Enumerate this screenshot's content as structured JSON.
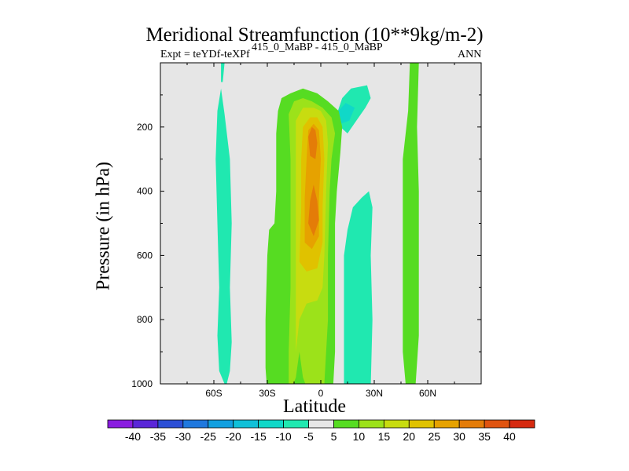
{
  "chart_data": {
    "type": "heatmap",
    "title": "Meridional Streamfunction (10**9kg/m-2)",
    "subtitle_left": "Expt = teYDf-teXPf",
    "subtitle_center": "415_0_MaBP - 415_0_MaBP",
    "subtitle_right": "ANN",
    "xlabel": "Latitude",
    "ylabel": "Pressure (in hPa)",
    "xlim": [
      -90,
      90
    ],
    "ylim": [
      1000,
      0
    ],
    "x_ticks": [
      {
        "value": -60,
        "label": "60S"
      },
      {
        "value": -30,
        "label": "30S"
      },
      {
        "value": 0,
        "label": "0"
      },
      {
        "value": 30,
        "label": "30N"
      },
      {
        "value": 60,
        "label": "60N"
      }
    ],
    "y_ticks": [
      {
        "value": 200,
        "label": "200"
      },
      {
        "value": 400,
        "label": "400"
      },
      {
        "value": 600,
        "label": "600"
      },
      {
        "value": 800,
        "label": "800"
      },
      {
        "value": 1000,
        "label": "1000"
      }
    ],
    "plot_background": "#e6e6e6",
    "contour_levels": [
      -40,
      -35,
      -30,
      -25,
      -20,
      -15,
      -10,
      -5,
      5,
      10,
      15,
      20,
      25,
      30,
      35,
      40
    ],
    "colorbar_labels": [
      "-40",
      "-35",
      "-30",
      "-25",
      "-20",
      "-15",
      "-10",
      "-5",
      "5",
      "10",
      "15",
      "20",
      "25",
      "30",
      "35",
      "40"
    ],
    "colorbar_colors": [
      "#8a1ce0",
      "#5a26d8",
      "#2c4fd6",
      "#1f78de",
      "#12a0e0",
      "#10c0d8",
      "#10d8c8",
      "#20e8b0",
      "#e6e6e6",
      "#56dc22",
      "#9ce21a",
      "#c8dc10",
      "#e0c200",
      "#e6a200",
      "#e47c08",
      "#e05410",
      "#d62a10"
    ],
    "regions": [
      {
        "name": "southern-high-lat-cell",
        "level": -5,
        "color": "#20e8b0",
        "points": [
          [
            -54,
            1000
          ],
          [
            -57,
            960
          ],
          [
            -58,
            850
          ],
          [
            -57,
            700
          ],
          [
            -58,
            500
          ],
          [
            -59,
            300
          ],
          [
            -58,
            150
          ],
          [
            -56,
            80
          ],
          [
            -54,
            160
          ],
          [
            -51,
            300
          ],
          [
            -50,
            500
          ],
          [
            -51,
            700
          ],
          [
            -50,
            870
          ],
          [
            -51,
            960
          ],
          [
            -53,
            1005
          ]
        ]
      },
      {
        "name": "southern-high-lat-spike",
        "level": -5,
        "color": "#20e8b0",
        "points": [
          [
            -56,
            0
          ],
          [
            -54,
            0
          ],
          [
            -55,
            60
          ],
          [
            -56,
            60
          ]
        ]
      },
      {
        "name": "upper-tropical-cell",
        "level": -5,
        "color": "#20e8b0",
        "points": [
          [
            9,
            160
          ],
          [
            12,
            110
          ],
          [
            17,
            80
          ],
          [
            26,
            70
          ],
          [
            28,
            110
          ],
          [
            25,
            140
          ],
          [
            20,
            180
          ],
          [
            15,
            220
          ],
          [
            11,
            200
          ]
        ]
      },
      {
        "name": "upper-tropical-cell-core",
        "level": -10,
        "color": "#10d8c8",
        "points": [
          [
            9,
            155
          ],
          [
            14,
            125
          ],
          [
            19,
            140
          ],
          [
            16,
            180
          ],
          [
            11,
            190
          ]
        ]
      },
      {
        "name": "nh-subtropical-cell",
        "level": -5,
        "color": "#20e8b0",
        "points": [
          [
            12,
            1035
          ],
          [
            16,
            1045
          ],
          [
            25,
            1040
          ],
          [
            28,
            1010
          ],
          [
            29,
            800
          ],
          [
            28,
            600
          ],
          [
            29,
            450
          ],
          [
            27,
            400
          ],
          [
            23,
            420
          ],
          [
            18,
            450
          ],
          [
            15,
            520
          ],
          [
            13,
            600
          ],
          [
            13,
            800
          ],
          [
            13,
            1000
          ]
        ]
      },
      {
        "name": "nh-high-lat-cell",
        "level": 5,
        "color": "#56dc22",
        "points": [
          [
            48,
            1025
          ],
          [
            53,
            1020
          ],
          [
            55,
            850
          ],
          [
            55,
            600
          ],
          [
            55,
            400
          ],
          [
            54,
            200
          ],
          [
            55,
            0
          ],
          [
            50,
            0
          ],
          [
            49,
            150
          ],
          [
            46,
            300
          ],
          [
            46,
            500
          ],
          [
            46,
            700
          ],
          [
            46,
            900
          ]
        ]
      },
      {
        "name": "hadley-cell-outer",
        "level": 5,
        "color": "#56dc22",
        "points": [
          [
            -30,
            1030
          ],
          [
            -27,
            1045
          ],
          [
            -20,
            1050
          ],
          [
            -15,
            1040
          ],
          [
            -12,
            1005
          ],
          [
            -10,
            1050
          ],
          [
            -3,
            1050
          ],
          [
            0,
            1025
          ],
          [
            5,
            1040
          ],
          [
            7,
            1000
          ],
          [
            8,
            900
          ],
          [
            8,
            700
          ],
          [
            8,
            500
          ],
          [
            9,
            400
          ],
          [
            11,
            280
          ],
          [
            12,
            200
          ],
          [
            10,
            150
          ],
          [
            4,
            120
          ],
          [
            -2,
            95
          ],
          [
            -10,
            80
          ],
          [
            -17,
            95
          ],
          [
            -22,
            110
          ],
          [
            -24,
            150
          ],
          [
            -25,
            220
          ],
          [
            -25,
            300
          ],
          [
            -25,
            400
          ],
          [
            -26,
            500
          ],
          [
            -29,
            520
          ],
          [
            -30,
            600
          ],
          [
            -31,
            800
          ],
          [
            -31,
            950
          ]
        ]
      },
      {
        "name": "hadley-cell-10",
        "level": 10,
        "color": "#9ce21a",
        "points": [
          [
            -18,
            1040
          ],
          [
            -14,
            980
          ],
          [
            -12,
            900
          ],
          [
            -10,
            980
          ],
          [
            -6,
            1040
          ],
          [
            -2,
            1020
          ],
          [
            2,
            1000
          ],
          [
            4,
            800
          ],
          [
            4,
            600
          ],
          [
            5,
            400
          ],
          [
            6,
            300
          ],
          [
            8,
            220
          ],
          [
            6,
            170
          ],
          [
            1,
            140
          ],
          [
            -5,
            120
          ],
          [
            -10,
            110
          ],
          [
            -15,
            120
          ],
          [
            -18,
            160
          ],
          [
            -17,
            300
          ],
          [
            -17,
            500
          ],
          [
            -17,
            700
          ],
          [
            -18,
            900
          ]
        ]
      },
      {
        "name": "hadley-cell-15",
        "level": 15,
        "color": "#c8dc10",
        "points": [
          [
            -14,
            900
          ],
          [
            -12,
            800
          ],
          [
            -8,
            750
          ],
          [
            -2,
            740
          ],
          [
            1,
            700
          ],
          [
            2,
            600
          ],
          [
            3,
            400
          ],
          [
            4,
            250
          ],
          [
            3,
            180
          ],
          [
            0,
            150
          ],
          [
            -4,
            140
          ],
          [
            -10,
            140
          ],
          [
            -14,
            180
          ],
          [
            -14,
            300
          ],
          [
            -14,
            500
          ],
          [
            -14,
            700
          ]
        ]
      },
      {
        "name": "hadley-cell-20",
        "level": 20,
        "color": "#e0c200",
        "points": [
          [
            -12,
            620
          ],
          [
            -8,
            650
          ],
          [
            -2,
            640
          ],
          [
            1,
            560
          ],
          [
            1,
            450
          ],
          [
            2,
            300
          ],
          [
            1,
            200
          ],
          [
            -2,
            170
          ],
          [
            -6,
            170
          ],
          [
            -10,
            200
          ],
          [
            -11,
            300
          ],
          [
            -11,
            450
          ]
        ]
      },
      {
        "name": "hadley-cell-25",
        "level": 25,
        "color": "#e6a200",
        "points": [
          [
            -9,
            560
          ],
          [
            -5,
            580
          ],
          [
            -1,
            540
          ],
          [
            -1,
            420
          ],
          [
            0,
            300
          ],
          [
            -1,
            210
          ],
          [
            -4,
            190
          ],
          [
            -7,
            210
          ],
          [
            -8,
            300
          ],
          [
            -9,
            420
          ]
        ]
      },
      {
        "name": "hadley-cell-30a",
        "level": 30,
        "color": "#e47c08",
        "points": [
          [
            -7,
            500
          ],
          [
            -4,
            540
          ],
          [
            -1,
            490
          ],
          [
            -2,
            430
          ],
          [
            -4,
            380
          ],
          [
            -6,
            430
          ]
        ]
      },
      {
        "name": "hadley-cell-30b",
        "level": 30,
        "color": "#e47c08",
        "points": [
          [
            -6,
            290
          ],
          [
            -3,
            300
          ],
          [
            -2,
            250
          ],
          [
            -3,
            210
          ],
          [
            -5,
            200
          ],
          [
            -7,
            230
          ]
        ]
      }
    ]
  }
}
